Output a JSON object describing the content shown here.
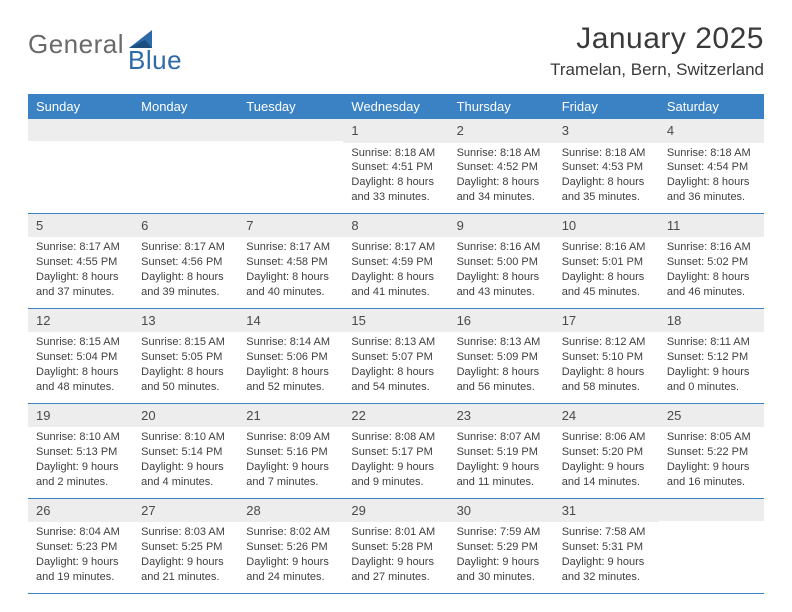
{
  "logo": {
    "word1": "General",
    "word2": "Blue"
  },
  "title": "January 2025",
  "subtitle": "Tramelan, Bern, Switzerland",
  "weekdays": [
    "Sunday",
    "Monday",
    "Tuesday",
    "Wednesday",
    "Thursday",
    "Friday",
    "Saturday"
  ],
  "colors": {
    "header": "#3b82c4",
    "row": "#ededed",
    "rule": "#3b82c4"
  },
  "grid": [
    [
      {
        "n": "",
        "lines": [
          "",
          "",
          "",
          ""
        ]
      },
      {
        "n": "",
        "lines": [
          "",
          "",
          "",
          ""
        ]
      },
      {
        "n": "",
        "lines": [
          "",
          "",
          "",
          ""
        ]
      },
      {
        "n": "1",
        "lines": [
          "Sunrise: 8:18 AM",
          "Sunset: 4:51 PM",
          "Daylight: 8 hours",
          "and 33 minutes."
        ]
      },
      {
        "n": "2",
        "lines": [
          "Sunrise: 8:18 AM",
          "Sunset: 4:52 PM",
          "Daylight: 8 hours",
          "and 34 minutes."
        ]
      },
      {
        "n": "3",
        "lines": [
          "Sunrise: 8:18 AM",
          "Sunset: 4:53 PM",
          "Daylight: 8 hours",
          "and 35 minutes."
        ]
      },
      {
        "n": "4",
        "lines": [
          "Sunrise: 8:18 AM",
          "Sunset: 4:54 PM",
          "Daylight: 8 hours",
          "and 36 minutes."
        ]
      }
    ],
    [
      {
        "n": "5",
        "lines": [
          "Sunrise: 8:17 AM",
          "Sunset: 4:55 PM",
          "Daylight: 8 hours",
          "and 37 minutes."
        ]
      },
      {
        "n": "6",
        "lines": [
          "Sunrise: 8:17 AM",
          "Sunset: 4:56 PM",
          "Daylight: 8 hours",
          "and 39 minutes."
        ]
      },
      {
        "n": "7",
        "lines": [
          "Sunrise: 8:17 AM",
          "Sunset: 4:58 PM",
          "Daylight: 8 hours",
          "and 40 minutes."
        ]
      },
      {
        "n": "8",
        "lines": [
          "Sunrise: 8:17 AM",
          "Sunset: 4:59 PM",
          "Daylight: 8 hours",
          "and 41 minutes."
        ]
      },
      {
        "n": "9",
        "lines": [
          "Sunrise: 8:16 AM",
          "Sunset: 5:00 PM",
          "Daylight: 8 hours",
          "and 43 minutes."
        ]
      },
      {
        "n": "10",
        "lines": [
          "Sunrise: 8:16 AM",
          "Sunset: 5:01 PM",
          "Daylight: 8 hours",
          "and 45 minutes."
        ]
      },
      {
        "n": "11",
        "lines": [
          "Sunrise: 8:16 AM",
          "Sunset: 5:02 PM",
          "Daylight: 8 hours",
          "and 46 minutes."
        ]
      }
    ],
    [
      {
        "n": "12",
        "lines": [
          "Sunrise: 8:15 AM",
          "Sunset: 5:04 PM",
          "Daylight: 8 hours",
          "and 48 minutes."
        ]
      },
      {
        "n": "13",
        "lines": [
          "Sunrise: 8:15 AM",
          "Sunset: 5:05 PM",
          "Daylight: 8 hours",
          "and 50 minutes."
        ]
      },
      {
        "n": "14",
        "lines": [
          "Sunrise: 8:14 AM",
          "Sunset: 5:06 PM",
          "Daylight: 8 hours",
          "and 52 minutes."
        ]
      },
      {
        "n": "15",
        "lines": [
          "Sunrise: 8:13 AM",
          "Sunset: 5:07 PM",
          "Daylight: 8 hours",
          "and 54 minutes."
        ]
      },
      {
        "n": "16",
        "lines": [
          "Sunrise: 8:13 AM",
          "Sunset: 5:09 PM",
          "Daylight: 8 hours",
          "and 56 minutes."
        ]
      },
      {
        "n": "17",
        "lines": [
          "Sunrise: 8:12 AM",
          "Sunset: 5:10 PM",
          "Daylight: 8 hours",
          "and 58 minutes."
        ]
      },
      {
        "n": "18",
        "lines": [
          "Sunrise: 8:11 AM",
          "Sunset: 5:12 PM",
          "Daylight: 9 hours",
          "and 0 minutes."
        ]
      }
    ],
    [
      {
        "n": "19",
        "lines": [
          "Sunrise: 8:10 AM",
          "Sunset: 5:13 PM",
          "Daylight: 9 hours",
          "and 2 minutes."
        ]
      },
      {
        "n": "20",
        "lines": [
          "Sunrise: 8:10 AM",
          "Sunset: 5:14 PM",
          "Daylight: 9 hours",
          "and 4 minutes."
        ]
      },
      {
        "n": "21",
        "lines": [
          "Sunrise: 8:09 AM",
          "Sunset: 5:16 PM",
          "Daylight: 9 hours",
          "and 7 minutes."
        ]
      },
      {
        "n": "22",
        "lines": [
          "Sunrise: 8:08 AM",
          "Sunset: 5:17 PM",
          "Daylight: 9 hours",
          "and 9 minutes."
        ]
      },
      {
        "n": "23",
        "lines": [
          "Sunrise: 8:07 AM",
          "Sunset: 5:19 PM",
          "Daylight: 9 hours",
          "and 11 minutes."
        ]
      },
      {
        "n": "24",
        "lines": [
          "Sunrise: 8:06 AM",
          "Sunset: 5:20 PM",
          "Daylight: 9 hours",
          "and 14 minutes."
        ]
      },
      {
        "n": "25",
        "lines": [
          "Sunrise: 8:05 AM",
          "Sunset: 5:22 PM",
          "Daylight: 9 hours",
          "and 16 minutes."
        ]
      }
    ],
    [
      {
        "n": "26",
        "lines": [
          "Sunrise: 8:04 AM",
          "Sunset: 5:23 PM",
          "Daylight: 9 hours",
          "and 19 minutes."
        ]
      },
      {
        "n": "27",
        "lines": [
          "Sunrise: 8:03 AM",
          "Sunset: 5:25 PM",
          "Daylight: 9 hours",
          "and 21 minutes."
        ]
      },
      {
        "n": "28",
        "lines": [
          "Sunrise: 8:02 AM",
          "Sunset: 5:26 PM",
          "Daylight: 9 hours",
          "and 24 minutes."
        ]
      },
      {
        "n": "29",
        "lines": [
          "Sunrise: 8:01 AM",
          "Sunset: 5:28 PM",
          "Daylight: 9 hours",
          "and 27 minutes."
        ]
      },
      {
        "n": "30",
        "lines": [
          "Sunrise: 7:59 AM",
          "Sunset: 5:29 PM",
          "Daylight: 9 hours",
          "and 30 minutes."
        ]
      },
      {
        "n": "31",
        "lines": [
          "Sunrise: 7:58 AM",
          "Sunset: 5:31 PM",
          "Daylight: 9 hours",
          "and 32 minutes."
        ]
      },
      {
        "n": "",
        "lines": [
          "",
          "",
          "",
          ""
        ]
      }
    ]
  ]
}
